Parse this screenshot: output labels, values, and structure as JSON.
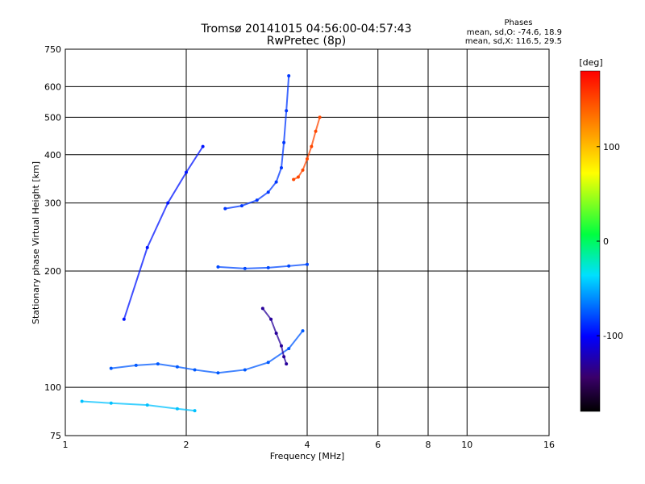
{
  "chart_data": {
    "type": "scatter",
    "title": "Tromsø 20141015 04:56:00-04:57:43",
    "subtitle": "RwPretec (8p)",
    "xlabel": "Frequency [MHz]",
    "ylabel": "Stationary phase Virtual Height [km]",
    "x_scale": "log",
    "y_scale": "log",
    "xlim": [
      1,
      16
    ],
    "ylim": [
      75,
      750
    ],
    "x_ticks": [
      1,
      2,
      4,
      6,
      8,
      10,
      16
    ],
    "y_ticks": [
      75,
      100,
      200,
      300,
      400,
      500,
      600,
      750
    ],
    "grid": true,
    "colorbar": {
      "label": "[deg]",
      "range": [
        -180,
        180
      ],
      "ticks": [
        100,
        0,
        -100
      ]
    },
    "stats": {
      "heading": "Phases",
      "line_o": "mean, sd,O: -74.6, 18.9",
      "line_x": "mean, sd,X: 116.5, 29.5"
    },
    "traces": [
      {
        "x": [
          1.3,
          1.5,
          1.7,
          1.9,
          2.1,
          2.4,
          2.8,
          3.2,
          3.6,
          3.9
        ],
        "y": [
          112,
          114,
          115,
          113,
          111,
          109,
          111,
          116,
          126,
          140
        ],
        "phase": -75
      },
      {
        "x": [
          2.5,
          2.75,
          3.0,
          3.2,
          3.35,
          3.45,
          3.5,
          3.55,
          3.6
        ],
        "y": [
          290,
          295,
          305,
          320,
          340,
          370,
          430,
          520,
          640
        ],
        "phase": -85
      },
      {
        "x": [
          3.7,
          3.8,
          3.9,
          4.0,
          4.1,
          4.2,
          4.3
        ],
        "y": [
          345,
          350,
          365,
          390,
          420,
          460,
          500
        ],
        "phase": 150
      },
      {
        "x": [
          2.4,
          2.8,
          3.2,
          3.6,
          4.0
        ],
        "y": [
          205,
          203,
          204,
          206,
          208
        ],
        "phase": -80
      },
      {
        "x": [
          3.1,
          3.25,
          3.35,
          3.45,
          3.5,
          3.55
        ],
        "y": [
          160,
          150,
          138,
          128,
          120,
          115
        ],
        "phase": -130
      },
      {
        "x": [
          1.4,
          1.6,
          1.8,
          2.0,
          2.2
        ],
        "y": [
          150,
          230,
          300,
          360,
          420
        ],
        "phase": -95
      },
      {
        "x": [
          1.1,
          1.3,
          1.6,
          1.9,
          2.1
        ],
        "y": [
          92,
          91,
          90,
          88,
          87
        ],
        "phase": -45
      }
    ]
  }
}
